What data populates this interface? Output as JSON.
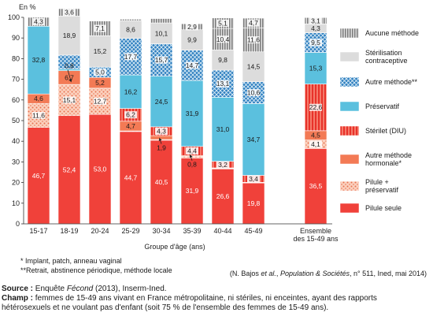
{
  "chart_data": {
    "type": "bar",
    "stacked": true,
    "ylabel": "En %",
    "xlabel": "Groupe d'âge (ans)",
    "ylim": [
      0,
      100
    ],
    "yticks": [
      0,
      10,
      20,
      30,
      40,
      50,
      60,
      70,
      80,
      90,
      100
    ],
    "categories": [
      "15-17",
      "18-19",
      "20-24",
      "25-29",
      "30-34",
      "35-39",
      "40-44",
      "45-49",
      "Ensemble des 15-49 ans"
    ],
    "grid": false,
    "legend_position": "right",
    "series": [
      {
        "name": "Pilule seule",
        "color": "#f0413a",
        "pattern": "solid",
        "values": [
          46.7,
          52.4,
          53.0,
          44.7,
          40.5,
          31.9,
          26.6,
          19.8,
          36.5
        ],
        "labels": [
          "46,7",
          "52,4",
          "53,0",
          "44,7",
          "40,5",
          "31,9",
          "26,6",
          "19,8",
          "36,5"
        ]
      },
      {
        "name": "Pilule + préservatif",
        "color": "#f7a98a",
        "pattern": "dots",
        "values": [
          11.6,
          15.1,
          12.7,
          0.3,
          0.3,
          0.8,
          0.3,
          0.2,
          4.1
        ],
        "labels": [
          "11,6",
          "15,1",
          "12,7",
          "",
          "",
          "0,8",
          "",
          "",
          "4,1"
        ]
      },
      {
        "name": "Autre méthode hormonale*",
        "color": "#f37a55",
        "pattern": "solid",
        "values": [
          4.6,
          6.7,
          5.2,
          4.7,
          1.9,
          0.4,
          0.2,
          0.1,
          4.5
        ],
        "labels": [
          "4,6",
          "6,7",
          "5,2",
          "4,7",
          "1,9",
          "",
          "",
          "",
          "4,5"
        ]
      },
      {
        "name": "Stérilet (DIU)",
        "color": "#f0413a",
        "pattern": "stripes",
        "values": [
          0,
          0,
          0,
          6.2,
          4.3,
          4.4,
          3.2,
          3.4,
          22.6
        ],
        "labels": [
          "",
          "",
          "",
          "6,2",
          "4,3",
          "4,4",
          "3,2",
          "3,4",
          "22,6"
        ]
      },
      {
        "name": "Préservatif",
        "color": "#5bc0de",
        "pattern": "solid",
        "values": [
          32.8,
          0.8,
          0,
          16.2,
          24.5,
          31.9,
          31.0,
          34.7,
          15.3
        ],
        "labels": [
          "32,8",
          "0,8",
          "",
          "16,2",
          "24,5",
          "31,9",
          "31,0",
          "34,7",
          "15,3"
        ]
      },
      {
        "name": "Autre méthode**",
        "color": "#2d7fb8",
        "pattern": "crosshatch",
        "values": [
          0,
          6.7,
          5.0,
          17.7,
          15.7,
          14.7,
          13.1,
          10.6,
          9.5
        ],
        "labels": [
          "",
          "",
          "5,0",
          "17,7",
          "15,7",
          "14,7",
          "13,1",
          "10,6",
          "9,5"
        ]
      },
      {
        "name": "Stérilisation contraceptive",
        "color": "#dcdcdc",
        "pattern": "solid",
        "values": [
          0,
          18.9,
          15.2,
          8.6,
          10.1,
          9.9,
          9.8,
          14.5,
          4.3
        ],
        "labels": [
          "",
          "18,9",
          "15,2",
          "8,6",
          "10,1",
          "9,9",
          "9,8",
          "14,5",
          "4,3"
        ]
      },
      {
        "name": "Aucune méthode",
        "color": "#999999",
        "pattern": "vstripes",
        "values": [
          4.3,
          3.6,
          7.1,
          0.7,
          2.1,
          2.9,
          10.4,
          11.6,
          3.1
        ],
        "labels": [
          "4,3",
          "3,6",
          "7,1",
          "",
          "",
          "2,9",
          "10,4",
          "11,6",
          "3,1"
        ]
      },
      {
        "name": "",
        "color": "#999999",
        "pattern": "vstripes",
        "values": [
          0,
          0,
          0,
          0,
          0,
          0,
          5.1,
          4.7,
          0
        ],
        "labels": [
          "",
          "",
          "",
          "",
          "",
          "",
          "5,1",
          "4,7",
          ""
        ]
      }
    ],
    "annotations": [
      {
        "category": "18-19",
        "text": "0,8",
        "arrow": "down"
      },
      {
        "category": "30-34",
        "text": "1,9",
        "arrow": "up"
      },
      {
        "category": "35-39",
        "text": "0,8",
        "arrow": "up"
      }
    ],
    "legend": [
      "Aucune méthode",
      "Stérilisation contraceptive",
      "Autre méthode**",
      "Préservatif",
      "Stérilet (DIU)",
      "Autre méthode hormonale*",
      "Pilule + préservatif",
      "Pilule seule"
    ]
  },
  "notes": {
    "note1": "* Implant, patch, anneau vaginal",
    "note2": "**Retrait, abstinence périodique, méthode locale"
  },
  "citation": {
    "prefix": "(N. Bajos",
    "etal": "et al.",
    "comma": ",",
    "journal": "Population & Sociétés",
    "suffix": ", n° 511, Ined, mai 2014)"
  },
  "footer": {
    "source_label": "Source :",
    "source_pre": "Enquête",
    "source_italic": "Fécond",
    "source_post": "(2013), Inserm-Ined.",
    "champ_label": "Champ :",
    "champ_text": "femmes de 15-49 ans vivant en France métropolitaine, ni stériles, ni enceintes, ayant des rapports hétérosexuels et ne voulant pas d'enfant (soit 75 % de l'ensemble des femmes de 15-49 ans)."
  }
}
